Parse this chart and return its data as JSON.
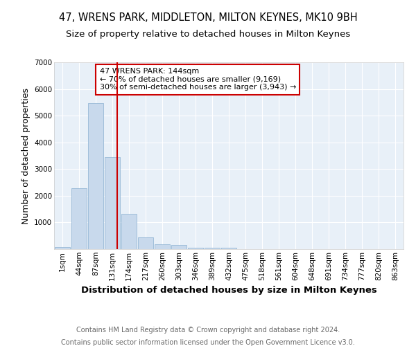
{
  "title": "47, WRENS PARK, MIDDLETON, MILTON KEYNES, MK10 9BH",
  "subtitle": "Size of property relative to detached houses in Milton Keynes",
  "xlabel": "Distribution of detached houses by size in Milton Keynes",
  "ylabel": "Number of detached properties",
  "footer_line1": "Contains HM Land Registry data © Crown copyright and database right 2024.",
  "footer_line2": "Contains public sector information licensed under the Open Government Licence v3.0.",
  "bin_labels": [
    "1sqm",
    "44sqm",
    "87sqm",
    "131sqm",
    "174sqm",
    "217sqm",
    "260sqm",
    "303sqm",
    "346sqm",
    "389sqm",
    "432sqm",
    "475sqm",
    "518sqm",
    "561sqm",
    "604sqm",
    "648sqm",
    "691sqm",
    "734sqm",
    "777sqm",
    "820sqm",
    "863sqm"
  ],
  "bar_heights": [
    80,
    2280,
    5480,
    3440,
    1320,
    440,
    175,
    155,
    55,
    50,
    50,
    0,
    0,
    0,
    0,
    0,
    0,
    0,
    0,
    0,
    0
  ],
  "bar_color": "#c8d9ec",
  "bar_edge_color": "#8ab0d0",
  "vline_color": "#cc0000",
  "annotation_text": "47 WRENS PARK: 144sqm\n← 70% of detached houses are smaller (9,169)\n30% of semi-detached houses are larger (3,943) →",
  "annotation_box_color": "#cc0000",
  "ylim": [
    0,
    7000
  ],
  "yticks": [
    0,
    1000,
    2000,
    3000,
    4000,
    5000,
    6000,
    7000
  ],
  "background_color": "#e8f0f8",
  "grid_color": "#ffffff",
  "title_fontsize": 10.5,
  "subtitle_fontsize": 9.5,
  "ylabel_fontsize": 9,
  "xlabel_fontsize": 9.5,
  "tick_fontsize": 7.5,
  "footer_fontsize": 7,
  "ann_fontsize": 8
}
